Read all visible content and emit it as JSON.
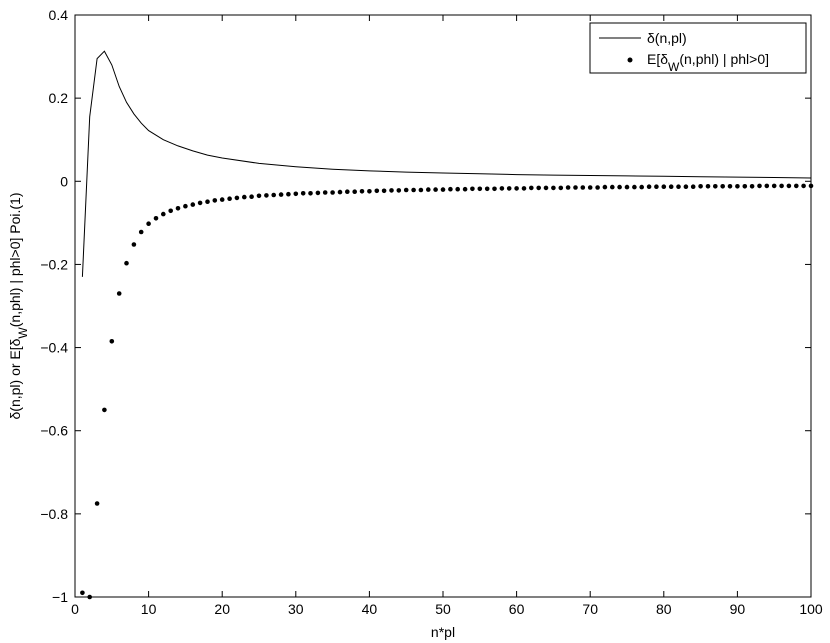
{
  "chart_data": {
    "type": "line",
    "xlabel": "n*pl",
    "ylabel": "δ(n,pl) or E[δ_W(n,phl) | phl>0]   Poi.(1)",
    "ylabel_parts": [
      "δ(n,pl) or E[δ",
      "W",
      "(n,phl) | phl>0]   Poi.(1)"
    ],
    "xlim": [
      0,
      100
    ],
    "ylim": [
      -1,
      0.4
    ],
    "xticks": [
      0,
      10,
      20,
      30,
      40,
      50,
      60,
      70,
      80,
      90,
      100
    ],
    "yticks": [
      -1,
      -0.8,
      -0.6,
      -0.4,
      -0.2,
      0,
      0.2,
      0.4
    ],
    "ytick_labels": [
      "−1",
      "−0.8",
      "−0.6",
      "−0.4",
      "−0.2",
      "0",
      "0.2",
      "0.4"
    ],
    "grid": false,
    "legend_position": "top-right",
    "series": [
      {
        "name": "δ(n,pl)",
        "style": "line",
        "x": [
          1,
          2,
          3,
          4,
          5,
          6,
          7,
          8,
          9,
          10,
          12,
          14,
          16,
          18,
          20,
          25,
          30,
          35,
          40,
          45,
          50,
          55,
          60,
          65,
          70,
          75,
          80,
          85,
          90,
          95,
          100
        ],
        "y": [
          -0.23,
          0.155,
          0.295,
          0.313,
          0.28,
          0.228,
          0.19,
          0.162,
          0.14,
          0.122,
          0.1,
          0.085,
          0.073,
          0.063,
          0.056,
          0.043,
          0.035,
          0.029,
          0.025,
          0.022,
          0.02,
          0.018,
          0.016,
          0.015,
          0.014,
          0.013,
          0.012,
          0.011,
          0.01,
          0.009,
          0.008
        ]
      },
      {
        "name": "E[δ_W(n,phl) | phl>0]",
        "name_parts": [
          "E[δ",
          "W",
          "(n,phl) | phl>0]"
        ],
        "style": "dots",
        "x": [
          1,
          2,
          3,
          4,
          5,
          6,
          7,
          8,
          9,
          10,
          11,
          12,
          13,
          14,
          15,
          16,
          17,
          18,
          19,
          20,
          21,
          22,
          23,
          24,
          25,
          26,
          27,
          28,
          29,
          30,
          31,
          32,
          33,
          34,
          35,
          36,
          37,
          38,
          39,
          40,
          41,
          42,
          43,
          44,
          45,
          46,
          47,
          48,
          49,
          50,
          51,
          52,
          53,
          54,
          55,
          56,
          57,
          58,
          59,
          60,
          61,
          62,
          63,
          64,
          65,
          66,
          67,
          68,
          69,
          70,
          71,
          72,
          73,
          74,
          75,
          76,
          77,
          78,
          79,
          80,
          81,
          82,
          83,
          84,
          85,
          86,
          87,
          88,
          89,
          90,
          91,
          92,
          93,
          94,
          95,
          96,
          97,
          98,
          99,
          100
        ],
        "y": [
          -0.99,
          -1.0,
          -0.775,
          -0.55,
          -0.385,
          -0.27,
          -0.197,
          -0.152,
          -0.122,
          -0.102,
          -0.089,
          -0.079,
          -0.071,
          -0.065,
          -0.06,
          -0.056,
          -0.052,
          -0.049,
          -0.046,
          -0.044,
          -0.042,
          -0.04,
          -0.038,
          -0.037,
          -0.035,
          -0.034,
          -0.033,
          -0.032,
          -0.031,
          -0.03,
          -0.029,
          -0.029,
          -0.028,
          -0.027,
          -0.027,
          -0.026,
          -0.025,
          -0.025,
          -0.024,
          -0.024,
          -0.023,
          -0.023,
          -0.022,
          -0.022,
          -0.021,
          -0.021,
          -0.021,
          -0.02,
          -0.02,
          -0.02,
          -0.019,
          -0.019,
          -0.019,
          -0.018,
          -0.018,
          -0.018,
          -0.018,
          -0.017,
          -0.017,
          -0.017,
          -0.017,
          -0.016,
          -0.016,
          -0.016,
          -0.016,
          -0.016,
          -0.015,
          -0.015,
          -0.015,
          -0.015,
          -0.015,
          -0.014,
          -0.014,
          -0.014,
          -0.014,
          -0.014,
          -0.014,
          -0.013,
          -0.013,
          -0.013,
          -0.013,
          -0.013,
          -0.013,
          -0.013,
          -0.012,
          -0.012,
          -0.012,
          -0.012,
          -0.012,
          -0.012,
          -0.012,
          -0.012,
          -0.011,
          -0.011,
          -0.011,
          -0.011,
          -0.011,
          -0.011,
          -0.011,
          -0.011
        ]
      }
    ]
  }
}
